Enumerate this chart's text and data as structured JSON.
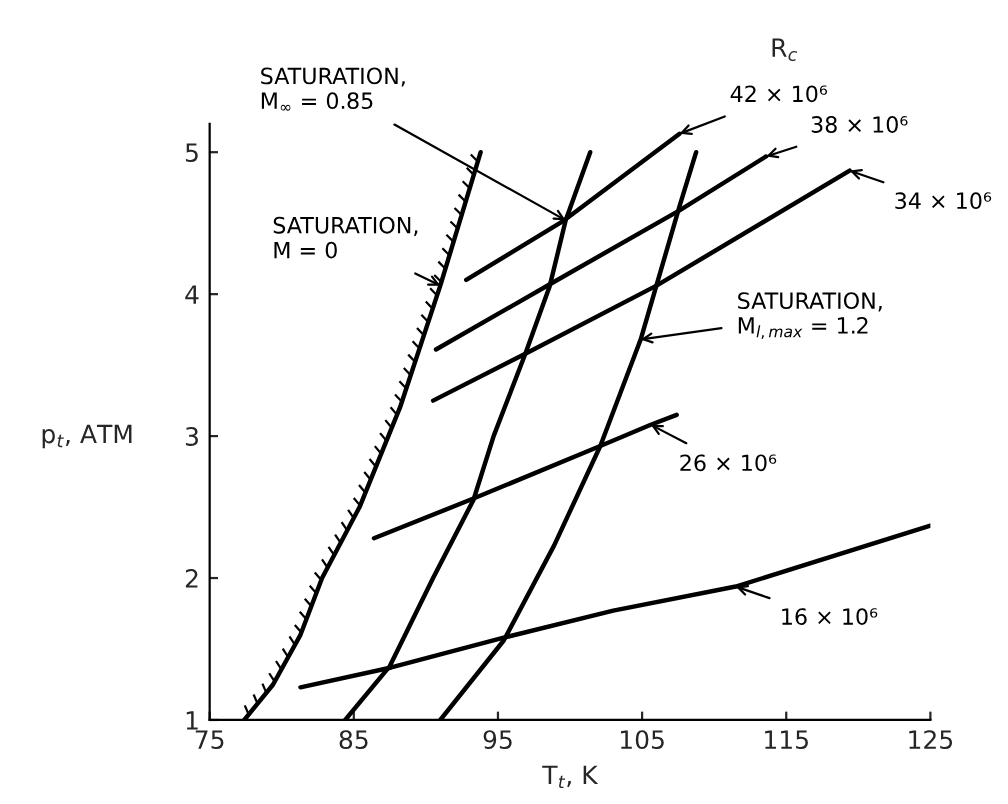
{
  "chart_data": {
    "type": "line",
    "xlabel": "T$_{t}$, K",
    "ylabel": "p$_{t}$, ATM",
    "annotations": [
      "R$_{c}$"
    ],
    "xlim": [
      75,
      125
    ],
    "xticks": [
      75,
      85,
      95,
      105,
      115,
      125
    ],
    "ylim": [
      1,
      5.2
    ],
    "yticks": [
      1,
      2,
      3,
      4,
      5
    ],
    "line_style": "solid",
    "series": [
      {
        "name": "SATURATION,\nM = 0",
        "color": "#000000",
        "x": [
          77.4,
          79.4,
          81.3,
          82.8,
          85.4,
          88.2,
          91.0,
          93.8
        ],
        "values": [
          1.0,
          1.25,
          1.6,
          2.0,
          2.5,
          3.2,
          4.06,
          5.0
        ]
      },
      {
        "name": "SATURATION,\nM$_{∞}$ = 0.85",
        "color": "#000000",
        "x": [
          84.4,
          87.5,
          90.5,
          93.3,
          94.7,
          96.9,
          98.6,
          99.7,
          101.4
        ],
        "values": [
          1.0,
          1.38,
          2.0,
          2.55,
          3.0,
          3.58,
          4.06,
          4.52,
          5.0
        ]
      },
      {
        "name": "SATURATION,\nM$_{l,max}$ = 1.2",
        "color": "#000000",
        "x": [
          91.0,
          95.4,
          98.9,
          102.1,
          104.9,
          107.6,
          108.75
        ],
        "values": [
          1.0,
          1.56,
          2.23,
          2.93,
          3.68,
          4.62,
          5.0
        ]
      },
      {
        "name": "16 × 10⁶",
        "color": "#000000",
        "x": [
          81.3,
          87.6,
          95.4,
          103.0,
          111.5,
          125.0
        ],
        "values": [
          1.23,
          1.37,
          1.58,
          1.77,
          1.94,
          2.37
        ]
      },
      {
        "name": "26 × 10⁶",
        "color": "#000000",
        "x": [
          86.4,
          93.3,
          102.1,
          105.6,
          107.4
        ],
        "values": [
          2.28,
          2.56,
          2.93,
          3.08,
          3.15
        ]
      },
      {
        "name": "34 × 10⁶",
        "color": "#000000",
        "x": [
          90.5,
          96.9,
          106.0,
          119.4
        ],
        "values": [
          3.25,
          3.58,
          4.06,
          4.87
        ]
      },
      {
        "name": "38 × 10⁶",
        "color": "#000000",
        "x": [
          90.7,
          98.6,
          107.6,
          113.6
        ],
        "values": [
          3.61,
          4.07,
          4.59,
          4.97
        ]
      },
      {
        "name": "42 × 10⁶",
        "color": "#000000",
        "x": [
          92.8,
          99.6,
          107.6
        ],
        "values": [
          4.1,
          4.52,
          5.13
        ]
      }
    ]
  }
}
